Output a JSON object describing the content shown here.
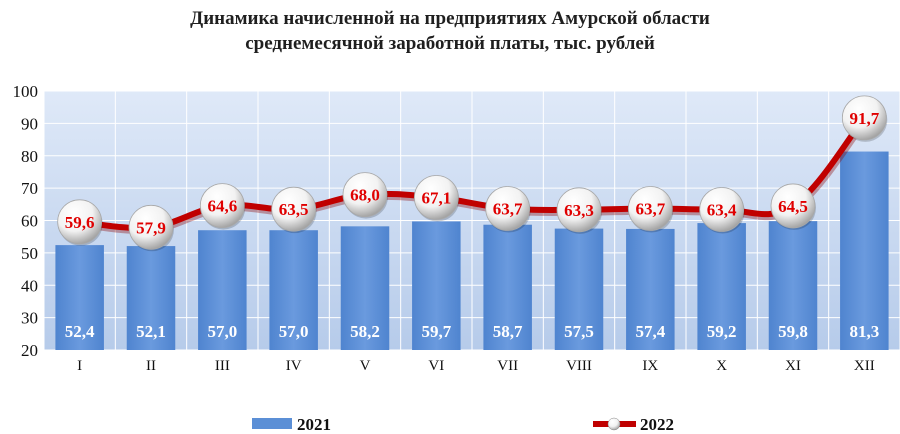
{
  "chart_data": {
    "type": "bar",
    "title_line1": "Динамика начисленной на предприятиях Амурской области",
    "title_line2": "среднемесячной заработной платы, тыс. рублей",
    "categories": [
      "I",
      "II",
      "III",
      "IV",
      "V",
      "VI",
      "VII",
      "VIII",
      "IX",
      "X",
      "XI",
      "XII"
    ],
    "ylim": [
      20,
      100
    ],
    "yticks": [
      "20",
      "30",
      "40",
      "50",
      "60",
      "70",
      "80",
      "90",
      "100"
    ],
    "grid": true,
    "legend_position": "bottom",
    "series": [
      {
        "name": "2021",
        "type": "bar",
        "color": "#5b8fd6",
        "values": [
          52.4,
          52.1,
          57.0,
          57.0,
          58.2,
          59.7,
          58.7,
          57.5,
          57.4,
          59.2,
          59.8,
          81.3
        ],
        "labels": [
          "52,4",
          "52,1",
          "57,0",
          "57,0",
          "58,2",
          "59,7",
          "58,7",
          "57,5",
          "57,4",
          "59,2",
          "59,8",
          "81,3"
        ]
      },
      {
        "name": "2022",
        "type": "line",
        "color": "#c00000",
        "values": [
          59.6,
          57.9,
          64.6,
          63.5,
          68.0,
          67.1,
          63.7,
          63.3,
          63.7,
          63.4,
          64.5,
          91.7
        ],
        "labels": [
          "59,6",
          "57,9",
          "64,6",
          "63,5",
          "68,0",
          "67,1",
          "63,7",
          "63,3",
          "63,7",
          "63,4",
          "64,5",
          "91,7"
        ]
      }
    ],
    "colors": {
      "plot_bg_top": "#dde8f7",
      "plot_bg_bottom": "#b8cdeb",
      "bar": "#5b8fd6",
      "line": "#c00000",
      "point_label": "#e00000"
    }
  }
}
